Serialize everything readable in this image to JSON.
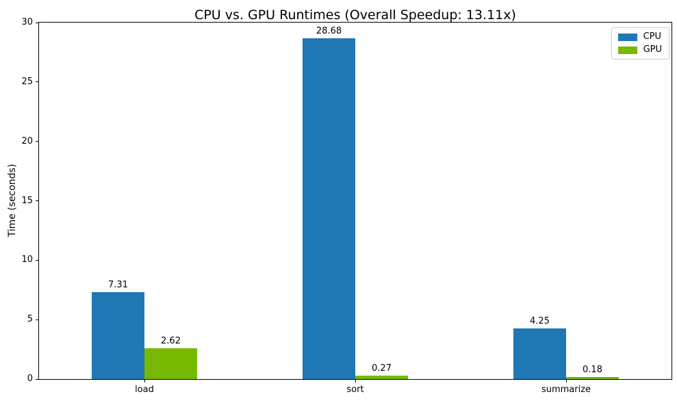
{
  "figure": {
    "background": "#ffffff",
    "axis_color": "#000000",
    "legend_border_color": "#cccccc"
  },
  "chart_data": {
    "type": "bar",
    "title": "CPU vs. GPU Runtimes (Overall Speedup: 13.11x)",
    "xlabel": "",
    "ylabel": "Time (seconds)",
    "categories": [
      "load",
      "sort",
      "summarize"
    ],
    "series": [
      {
        "name": "CPU",
        "color": "#1f77b4",
        "values": [
          7.31,
          28.68,
          4.25
        ],
        "labels": [
          "7.31",
          "28.68",
          "4.25"
        ]
      },
      {
        "name": "GPU",
        "color": "#76b900",
        "values": [
          2.62,
          0.27,
          0.18
        ],
        "labels": [
          "2.62",
          "0.27",
          "0.18"
        ]
      }
    ],
    "ylim": [
      0,
      30
    ],
    "yticks": [
      0,
      5,
      10,
      15,
      20,
      25,
      30
    ],
    "ytick_labels": [
      "0",
      "5",
      "10",
      "15",
      "20",
      "25",
      "30"
    ],
    "legend": {
      "position": "upper-right",
      "entries": [
        "CPU",
        "GPU"
      ]
    },
    "grid": false
  }
}
